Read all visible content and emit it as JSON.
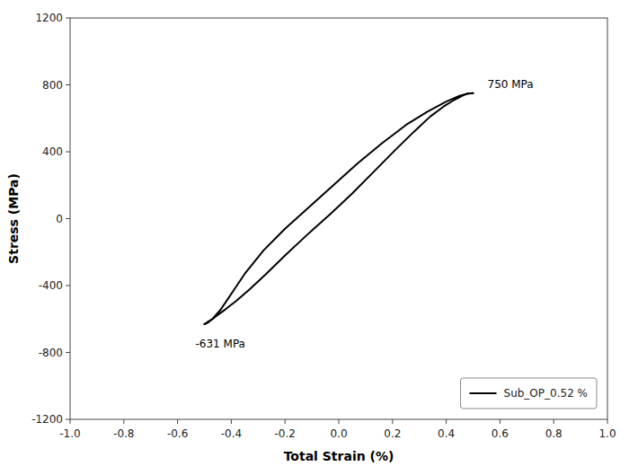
{
  "chart_data": {
    "type": "line",
    "title": "",
    "xlabel": "Total Strain (%)",
    "ylabel": "Stress (MPa)",
    "xlim": [
      -1.0,
      1.0
    ],
    "ylim": [
      -1200,
      1200
    ],
    "xticks": [
      {
        "value": -1.0,
        "label": "-1.0"
      },
      -0.8,
      -0.6,
      -0.4,
      -0.2,
      {
        "value": 0.0,
        "label": "0.0"
      },
      0.2,
      0.4,
      0.6,
      0.8,
      {
        "value": 1.0,
        "label": "1.0"
      }
    ],
    "yticks": [
      -1200,
      -800,
      -400,
      0,
      400,
      800,
      1200
    ],
    "grid": false,
    "legend": "lower right",
    "series": [
      {
        "color": "#000000",
        "x": [
          -0.5,
          -0.49,
          -0.47,
          -0.45,
          -0.42,
          -0.38,
          -0.33,
          -0.27,
          -0.2,
          -0.12,
          -0.03,
          0.05,
          0.13,
          0.21,
          0.28,
          0.34,
          0.39,
          0.43,
          0.46,
          0.48,
          0.5
        ],
        "values": [
          -631,
          -620,
          -600,
          -575,
          -540,
          -490,
          -420,
          -330,
          -220,
          -100,
          30,
          150,
          280,
          410,
          520,
          610,
          670,
          710,
          735,
          748,
          750
        ]
      },
      {
        "name": "Sub_OP_0.52 %",
        "color": "#000000",
        "x": [
          0.5,
          0.48,
          0.45,
          0.4,
          0.33,
          0.25,
          0.16,
          0.07,
          -0.02,
          -0.11,
          -0.2,
          -0.28,
          -0.35,
          -0.4,
          -0.44,
          -0.47,
          -0.49,
          -0.5
        ],
        "values": [
          750,
          748,
          735,
          700,
          640,
          560,
          450,
          330,
          200,
          70,
          -60,
          -190,
          -330,
          -450,
          -545,
          -600,
          -625,
          -631
        ]
      }
    ],
    "annotations": [
      {
        "text": "750 MPa",
        "x": 0.5,
        "y": 750
      },
      {
        "text": "-631 MPa",
        "x": -0.5,
        "y": -631
      }
    ]
  }
}
